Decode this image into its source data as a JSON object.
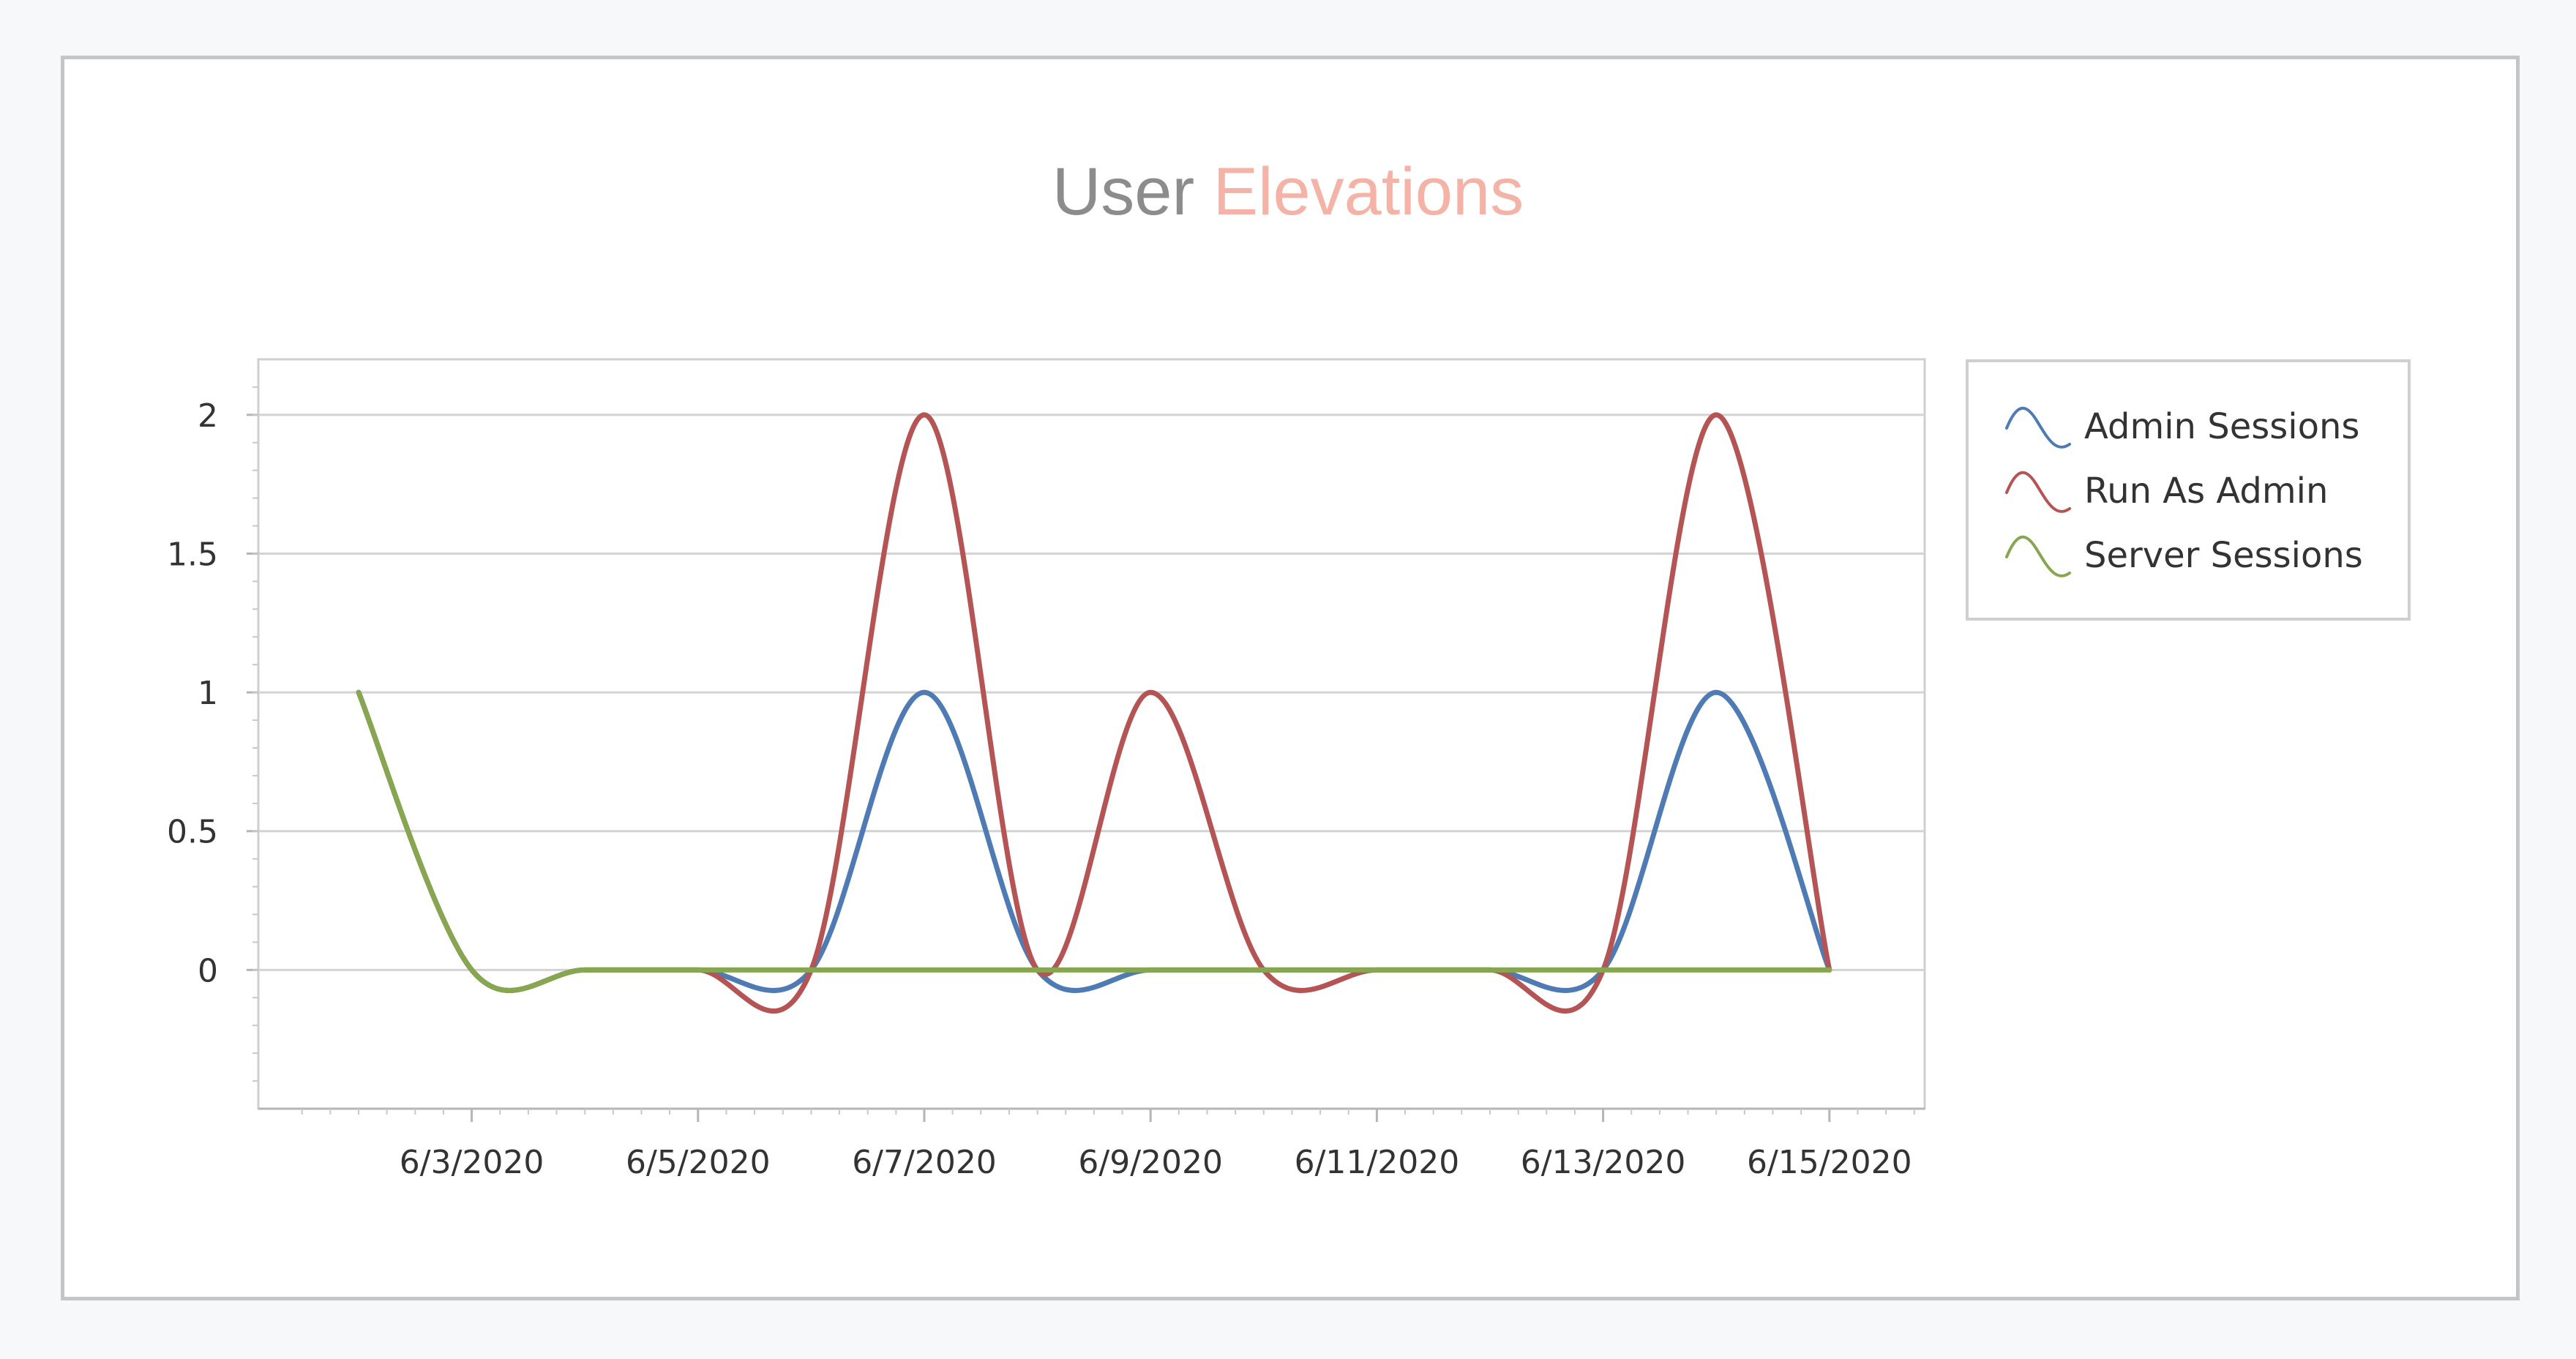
{
  "chart_data": {
    "type": "line",
    "title_parts": [
      "User ",
      "Elevations"
    ],
    "title_colors": [
      "#8c8c8c",
      "#f4b3a6"
    ],
    "x": [
      "6/2/2020",
      "6/3/2020",
      "6/4/2020",
      "6/5/2020",
      "6/6/2020",
      "6/7/2020",
      "6/8/2020",
      "6/9/2020",
      "6/10/2020",
      "6/11/2020",
      "6/12/2020",
      "6/13/2020",
      "6/14/2020",
      "6/15/2020"
    ],
    "x_tick_labels": [
      "6/3/2020",
      "6/5/2020",
      "6/7/2020",
      "6/9/2020",
      "6/11/2020",
      "6/13/2020",
      "6/15/2020"
    ],
    "y_tick_labels": [
      "2",
      "1.5",
      "1",
      "0.5",
      "0"
    ],
    "ylim": [
      -0.5,
      2.2
    ],
    "grid": true,
    "legend_position": "right",
    "series": [
      {
        "name": "Admin Sessions",
        "color": "#4f7bb5",
        "values": [
          1,
          0,
          0,
          0,
          0,
          1,
          0,
          0,
          0,
          0,
          0,
          0,
          1,
          0
        ]
      },
      {
        "name": "Run As Admin",
        "color": "#b55454",
        "values": [
          1,
          0,
          0,
          0,
          0,
          2,
          0,
          1,
          0,
          0,
          0,
          0,
          2,
          0
        ]
      },
      {
        "name": "Server Sessions",
        "color": "#86a74f",
        "values": [
          1,
          0,
          0,
          0,
          0,
          0,
          0,
          0,
          0,
          0,
          0,
          0,
          0,
          0
        ]
      }
    ]
  }
}
